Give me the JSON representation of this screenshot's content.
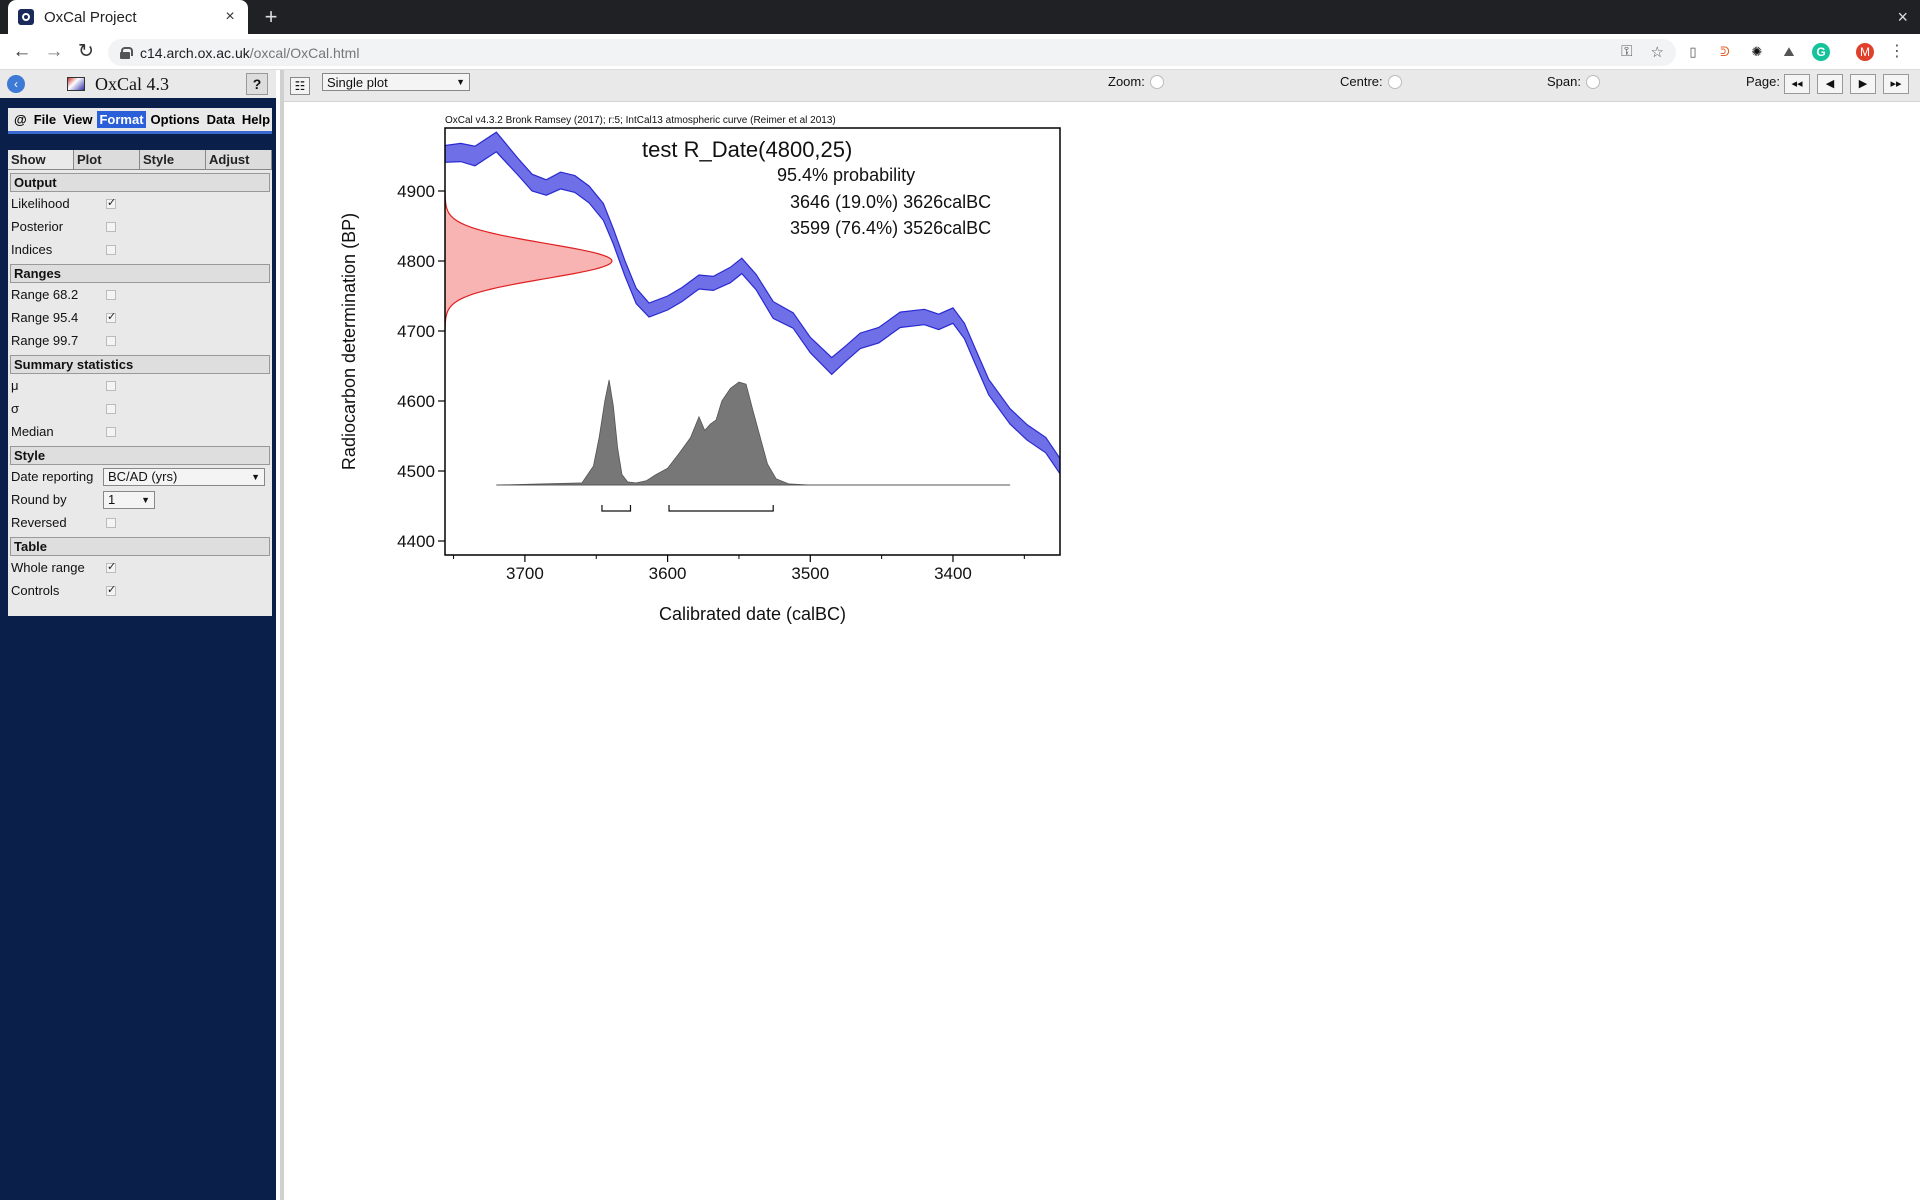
{
  "browser": {
    "tab_title": "OxCal Project",
    "tab_close": "×",
    "new_tab": "+",
    "window_close": "×",
    "url_host": "c14.arch.ox.ac.uk",
    "url_path": "/oxcal/OxCal.html",
    "profile_letter": "M"
  },
  "app": {
    "title": "OxCal 4.3",
    "help_label": "?",
    "menu": [
      {
        "label": "@",
        "active": false
      },
      {
        "label": "File",
        "active": false
      },
      {
        "label": "View",
        "active": false
      },
      {
        "label": "Format",
        "active": true
      },
      {
        "label": "Options",
        "active": false
      },
      {
        "label": "Data",
        "active": false
      },
      {
        "label": "Help",
        "active": false
      }
    ]
  },
  "format_panel": {
    "tabs": [
      "Show",
      "Plot",
      "Style",
      "Adjust"
    ],
    "output": {
      "heading": "Output",
      "likelihood": {
        "label": "Likelihood",
        "checked": true
      },
      "posterior": {
        "label": "Posterior",
        "checked": false
      },
      "indices": {
        "label": "Indices",
        "checked": false
      }
    },
    "ranges": {
      "heading": "Ranges",
      "r68": {
        "label": "Range 68.2",
        "checked": false
      },
      "r95": {
        "label": "Range 95.4",
        "checked": true
      },
      "r99": {
        "label": "Range 99.7",
        "checked": false
      }
    },
    "summary": {
      "heading": "Summary statistics",
      "mu": {
        "label": "μ",
        "checked": false
      },
      "sigma": {
        "label": "σ",
        "checked": false
      },
      "median": {
        "label": "Median",
        "checked": false
      }
    },
    "style": {
      "heading": "Style",
      "date_reporting_label": "Date reporting",
      "date_reporting_value": "BC/AD (yrs)",
      "round_by_label": "Round by",
      "round_by_value": "1",
      "reversed": {
        "label": "Reversed",
        "checked": false
      }
    },
    "table": {
      "heading": "Table",
      "whole_range": {
        "label": "Whole range",
        "checked": true
      },
      "controls": {
        "label": "Controls",
        "checked": true
      }
    }
  },
  "plot_toolbar": {
    "plot_select": "Single plot",
    "zoom_label": "Zoom:",
    "centre_label": "Centre:",
    "span_label": "Span:",
    "page_label": "Page:",
    "page_buttons": [
      "◂◂",
      "◀",
      "▶",
      "▸▸"
    ]
  },
  "chart_data": {
    "type": "line",
    "header": "OxCal v4.3.2 Bronk Ramsey (2017); r:5; IntCal13 atmospheric curve (Reimer et al 2013)",
    "title": "test R_Date(4800,25)",
    "annotation_lines": [
      "95.4% probability",
      "3646 (19.0%) 3626calBC",
      "3599 (76.4%) 3526calBC"
    ],
    "xlabel": "Calibrated date (calBC)",
    "ylabel": "Radiocarbon determination (BP)",
    "xlim": [
      3756,
      3325
    ],
    "ylim": [
      4380,
      4990
    ],
    "xticks": [
      3700,
      3600,
      3500,
      3400
    ],
    "yticks": [
      4400,
      4500,
      4600,
      4700,
      4800,
      4900
    ],
    "colors": {
      "curve": "#6f6fe8",
      "curve_edge": "#2a2ad0",
      "likelihood_fill": "#f8b3b3",
      "likelihood_edge": "#e02020",
      "posterior": "#777777"
    },
    "calibration_curve": {
      "x": [
        3756,
        3745,
        3735,
        3720,
        3705,
        3695,
        3685,
        3675,
        3665,
        3655,
        3645,
        3638,
        3630,
        3622,
        3613,
        3600,
        3590,
        3578,
        3568,
        3556,
        3548,
        3538,
        3526,
        3512,
        3500,
        3485,
        3475,
        3465,
        3452,
        3437,
        3420,
        3410,
        3400,
        3392,
        3384,
        3375,
        3360,
        3348,
        3335,
        3325
      ],
      "y": [
        4953,
        4955,
        4950,
        4970,
        4935,
        4912,
        4905,
        4915,
        4910,
        4895,
        4870,
        4835,
        4790,
        4750,
        4730,
        4740,
        4752,
        4770,
        4768,
        4780,
        4793,
        4770,
        4730,
        4715,
        4680,
        4650,
        4668,
        4686,
        4694,
        4716,
        4720,
        4713,
        4722,
        4700,
        4662,
        4620,
        4578,
        4555,
        4537,
        4507
      ],
      "halfwidth": [
        12,
        13,
        14,
        14,
        12,
        12,
        11,
        12,
        12,
        12,
        12,
        11,
        11,
        11,
        10,
        10,
        10,
        10,
        10,
        11,
        11,
        11,
        12,
        11,
        11,
        12,
        11,
        11,
        11,
        11,
        11,
        11,
        11,
        11,
        11,
        11,
        11,
        11,
        11,
        11
      ]
    },
    "likelihood": {
      "mean": 4800,
      "sd": 25
    },
    "posterior": {
      "x": [
        3720,
        3660,
        3652,
        3648,
        3644,
        3641,
        3638,
        3635,
        3632,
        3628,
        3622,
        3615,
        3608,
        3600,
        3592,
        3584,
        3578,
        3574,
        3570,
        3566,
        3562,
        3556,
        3550,
        3545,
        3540,
        3535,
        3530,
        3524,
        3515,
        3500,
        3360
      ],
      "y": [
        0,
        0.02,
        0.18,
        0.45,
        0.8,
        1.0,
        0.75,
        0.35,
        0.1,
        0.03,
        0.02,
        0.04,
        0.1,
        0.16,
        0.3,
        0.45,
        0.65,
        0.52,
        0.58,
        0.62,
        0.8,
        0.92,
        0.98,
        0.96,
        0.7,
        0.45,
        0.2,
        0.06,
        0.01,
        0,
        0
      ],
      "baseline_y": 4480,
      "peak_height_bp": 150
    },
    "ranges_95": [
      [
        3646,
        3626
      ],
      [
        3599,
        3526
      ]
    ]
  }
}
